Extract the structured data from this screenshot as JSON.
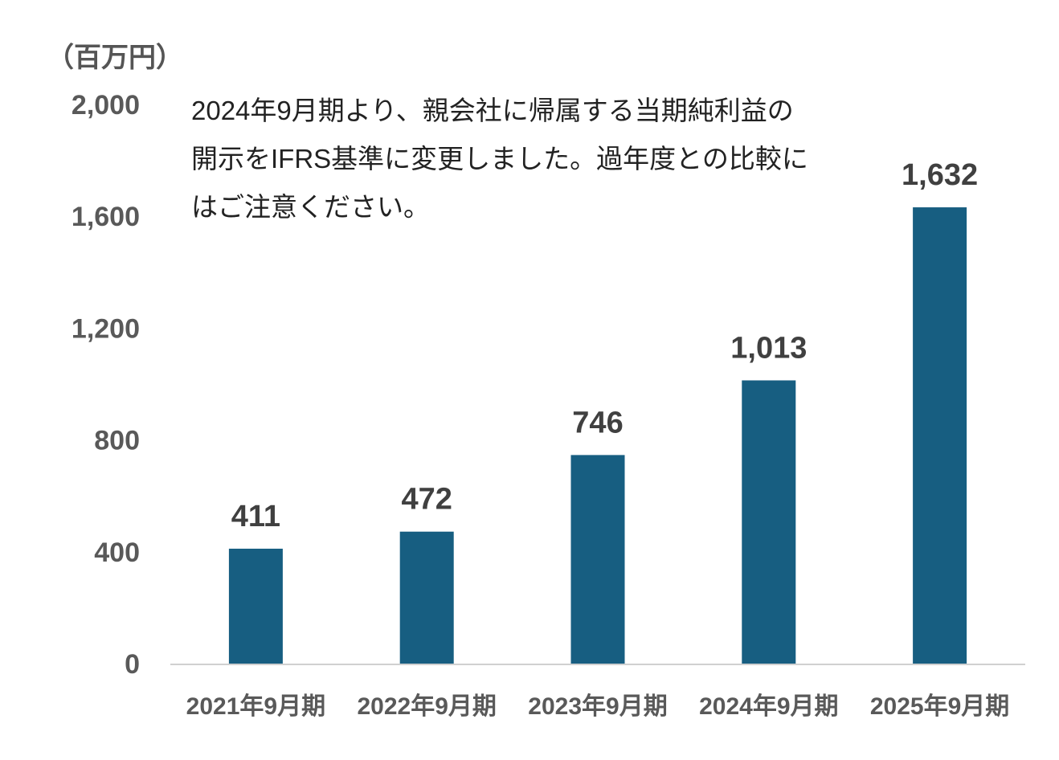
{
  "unit_label": "（百万円）",
  "note": "2024年9月期より、親会社に帰属する当期純利益の\n開示をIFRS基準に変更しました。過年度との比較に\nはご注意ください。",
  "colors": {
    "bar": "#175E81",
    "axis": "#d0d0d0",
    "tick_text": "#595959",
    "data_text": "#404040"
  },
  "chart_data": {
    "type": "bar",
    "categories": [
      "2021年9月期",
      "2022年9月期",
      "2023年9月期",
      "2024年9月期",
      "2025年9月期"
    ],
    "values": [
      411,
      472,
      746,
      1013,
      1632
    ],
    "value_labels": [
      "411",
      "472",
      "746",
      "1,013",
      "1,632"
    ],
    "ylim": [
      0,
      2000
    ],
    "yticks": [
      0,
      400,
      800,
      1200,
      1600,
      2000
    ],
    "ytick_labels": [
      "0",
      "400",
      "800",
      "1,200",
      "1,600",
      "2,000"
    ],
    "grid": false,
    "legend": "none"
  }
}
